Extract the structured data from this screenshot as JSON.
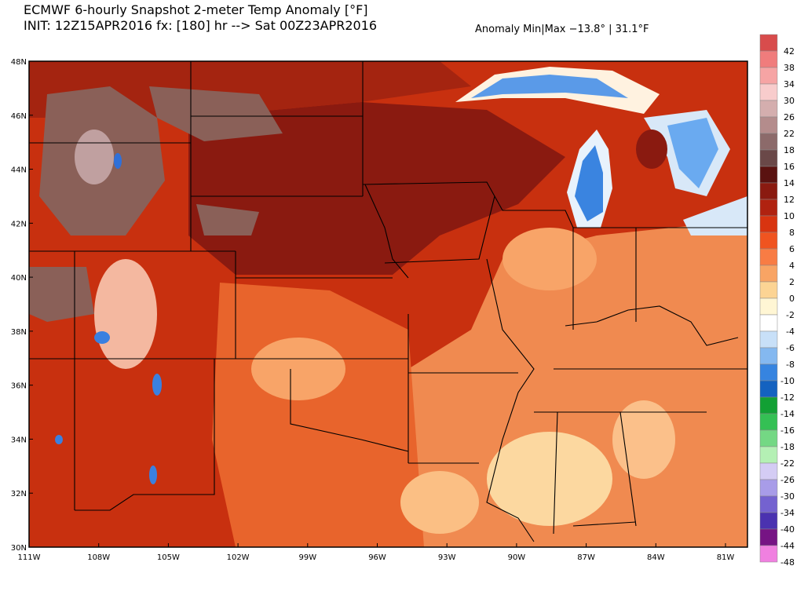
{
  "header": {
    "title": "ECMWF 6-hourly Snapshot 2-meter Temp Anomaly [°F]",
    "subtitle": "INIT: 12Z15APR2016 fx: [180] hr --> Sat 00Z23APR2016",
    "anomaly_range": "Anomaly Min|Max −13.8° | 31.1°F"
  },
  "map": {
    "lat_labels": [
      "48N",
      "46N",
      "44N",
      "42N",
      "40N",
      "38N",
      "36N",
      "34N",
      "32N",
      "30N"
    ],
    "lon_labels": [
      "111W",
      "108W",
      "105W",
      "102W",
      "99W",
      "96W",
      "93W",
      "90W",
      "87W",
      "84W",
      "81W"
    ]
  },
  "colorbar": {
    "labels": [
      42,
      38,
      34,
      30,
      26,
      22,
      18,
      16,
      14,
      12,
      10,
      8,
      6,
      4,
      2,
      0,
      -2,
      -4,
      -6,
      -8,
      -10,
      -12,
      -14,
      -16,
      -18,
      -22,
      -26,
      -30,
      -34,
      -40,
      -44,
      -48
    ],
    "colors": [
      "#d84c4c",
      "#f07c7c",
      "#f6a4a4",
      "#f8cccc",
      "#d4aeae",
      "#b48c8c",
      "#8c6a6a",
      "#6a4848",
      "#5a1210",
      "#8a1a10",
      "#b02210",
      "#d83410",
      "#f05420",
      "#f87c44",
      "#f8a464",
      "#fcd494",
      "#fff6d4",
      "#ffffff",
      "#c8e0f8",
      "#84b8f0",
      "#3684e0",
      "#1462c0",
      "#12a034",
      "#34c054",
      "#74d884",
      "#b4f0b4",
      "#d4ccf4",
      "#a89ce8",
      "#7462d0",
      "#4a32b0",
      "#761484",
      "#f080e0"
    ]
  }
}
